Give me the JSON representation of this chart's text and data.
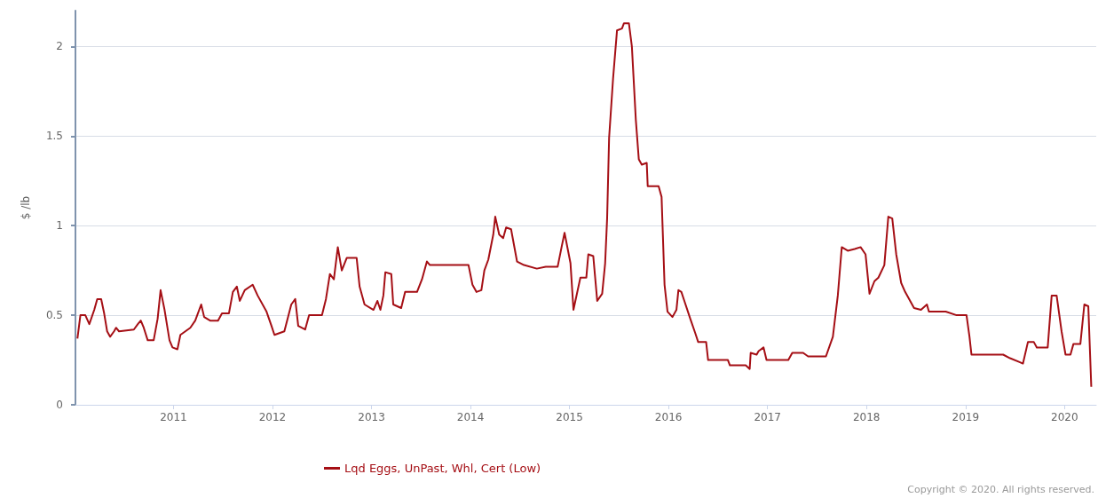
{
  "chart_data": {
    "type": "line",
    "ylabel": "$ /lb",
    "annotations": [
      "Copyright © 2020. All rights reserved."
    ],
    "xlim": [
      2010.01,
      2020.32
    ],
    "xticks": [
      2011,
      2012,
      2013,
      2014,
      2015,
      2016,
      2017,
      2018,
      2019,
      2020
    ],
    "ylim": [
      0,
      2.2
    ],
    "yticks": [
      0,
      0.5,
      1,
      1.5,
      2
    ],
    "grid": "y",
    "legend": "bottom",
    "marker": "none",
    "line_style": "solid",
    "series": [
      {
        "name": "Lqd Eggs, UnPast, Whl, Cert (Low)",
        "color": "#a50f15",
        "x": [
          2010.03,
          2010.06,
          2010.11,
          2010.15,
          2010.2,
          2010.23,
          2010.27,
          2010.3,
          2010.33,
          2010.36,
          2010.4,
          2010.42,
          2010.45,
          2010.6,
          2010.64,
          2010.67,
          2010.7,
          2010.74,
          2010.8,
          2010.84,
          2010.87,
          2010.91,
          2010.96,
          2010.99,
          2011.04,
          2011.07,
          2011.12,
          2011.17,
          2011.22,
          2011.28,
          2011.31,
          2011.37,
          2011.45,
          2011.49,
          2011.56,
          2011.6,
          2011.64,
          2011.67,
          2011.72,
          2011.8,
          2011.85,
          2011.94,
          2011.99,
          2012.02,
          2012.12,
          2012.19,
          2012.23,
          2012.26,
          2012.33,
          2012.37,
          2012.5,
          2012.54,
          2012.58,
          2012.62,
          2012.66,
          2012.7,
          2012.75,
          2012.85,
          2012.88,
          2012.93,
          2013.02,
          2013.06,
          2013.09,
          2013.12,
          2013.14,
          2013.2,
          2013.22,
          2013.3,
          2013.34,
          2013.46,
          2013.51,
          2013.56,
          2013.59,
          2013.98,
          2014.02,
          2014.06,
          2014.11,
          2014.14,
          2014.18,
          2014.23,
          2014.25,
          2014.29,
          2014.33,
          2014.36,
          2014.41,
          2014.47,
          2014.54,
          2014.67,
          2014.76,
          2014.88,
          2014.92,
          2014.95,
          2015.01,
          2015.04,
          2015.11,
          2015.17,
          2015.19,
          2015.24,
          2015.28,
          2015.33,
          2015.36,
          2015.38,
          2015.4,
          2015.44,
          2015.48,
          2015.53,
          2015.55,
          2015.6,
          2015.63,
          2015.67,
          2015.7,
          2015.73,
          2015.78,
          2015.79,
          2015.9,
          2015.93,
          2015.96,
          2015.99,
          2016.04,
          2016.08,
          2016.1,
          2016.13,
          2016.16,
          2016.22,
          2016.27,
          2016.3,
          2016.38,
          2016.4,
          2016.6,
          2016.62,
          2016.78,
          2016.82,
          2016.83,
          2016.89,
          2016.91,
          2016.96,
          2016.99,
          2017.21,
          2017.25,
          2017.36,
          2017.41,
          2017.59,
          2017.66,
          2017.71,
          2017.75,
          2017.81,
          2017.88,
          2017.94,
          2017.99,
          2018.03,
          2018.08,
          2018.12,
          2018.18,
          2018.22,
          2018.26,
          2018.3,
          2018.35,
          2018.39,
          2018.48,
          2018.55,
          2018.61,
          2018.63,
          2018.8,
          2018.91,
          2019.01,
          2019.04,
          2019.06,
          2019.38,
          2019.45,
          2019.54,
          2019.58,
          2019.63,
          2019.69,
          2019.72,
          2019.83,
          2019.87,
          2019.92,
          2019.97,
          2020.01,
          2020.06,
          2020.09,
          2020.16,
          2020.2,
          2020.24,
          2020.27
        ],
        "values": [
          0.37,
          0.5,
          0.5,
          0.45,
          0.53,
          0.59,
          0.59,
          0.51,
          0.41,
          0.38,
          0.41,
          0.43,
          0.41,
          0.42,
          0.45,
          0.47,
          0.43,
          0.36,
          0.36,
          0.48,
          0.64,
          0.53,
          0.36,
          0.32,
          0.31,
          0.39,
          0.41,
          0.43,
          0.47,
          0.56,
          0.49,
          0.47,
          0.47,
          0.51,
          0.51,
          0.63,
          0.66,
          0.58,
          0.64,
          0.67,
          0.61,
          0.52,
          0.44,
          0.39,
          0.41,
          0.56,
          0.59,
          0.44,
          0.42,
          0.5,
          0.5,
          0.59,
          0.73,
          0.7,
          0.88,
          0.75,
          0.82,
          0.82,
          0.66,
          0.56,
          0.53,
          0.58,
          0.53,
          0.61,
          0.74,
          0.73,
          0.56,
          0.54,
          0.63,
          0.63,
          0.7,
          0.8,
          0.78,
          0.78,
          0.67,
          0.63,
          0.64,
          0.75,
          0.81,
          0.95,
          1.05,
          0.95,
          0.93,
          0.99,
          0.98,
          0.8,
          0.78,
          0.76,
          0.77,
          0.77,
          0.88,
          0.96,
          0.79,
          0.53,
          0.71,
          0.71,
          0.84,
          0.83,
          0.58,
          0.62,
          0.79,
          1.04,
          1.49,
          1.82,
          2.09,
          2.1,
          2.13,
          2.13,
          2.0,
          1.59,
          1.37,
          1.34,
          1.35,
          1.22,
          1.22,
          1.16,
          0.67,
          0.52,
          0.49,
          0.53,
          0.64,
          0.63,
          0.58,
          0.48,
          0.4,
          0.35,
          0.35,
          0.25,
          0.25,
          0.22,
          0.22,
          0.2,
          0.29,
          0.28,
          0.3,
          0.32,
          0.25,
          0.25,
          0.29,
          0.29,
          0.27,
          0.27,
          0.38,
          0.61,
          0.88,
          0.86,
          0.87,
          0.88,
          0.84,
          0.62,
          0.69,
          0.71,
          0.78,
          1.05,
          1.04,
          0.84,
          0.68,
          0.63,
          0.54,
          0.53,
          0.56,
          0.52,
          0.52,
          0.5,
          0.5,
          0.38,
          0.28,
          0.28,
          0.26,
          0.24,
          0.23,
          0.35,
          0.35,
          0.32,
          0.32,
          0.61,
          0.61,
          0.41,
          0.28,
          0.28,
          0.34,
          0.34,
          0.56,
          0.55,
          0.1
        ]
      }
    ]
  }
}
